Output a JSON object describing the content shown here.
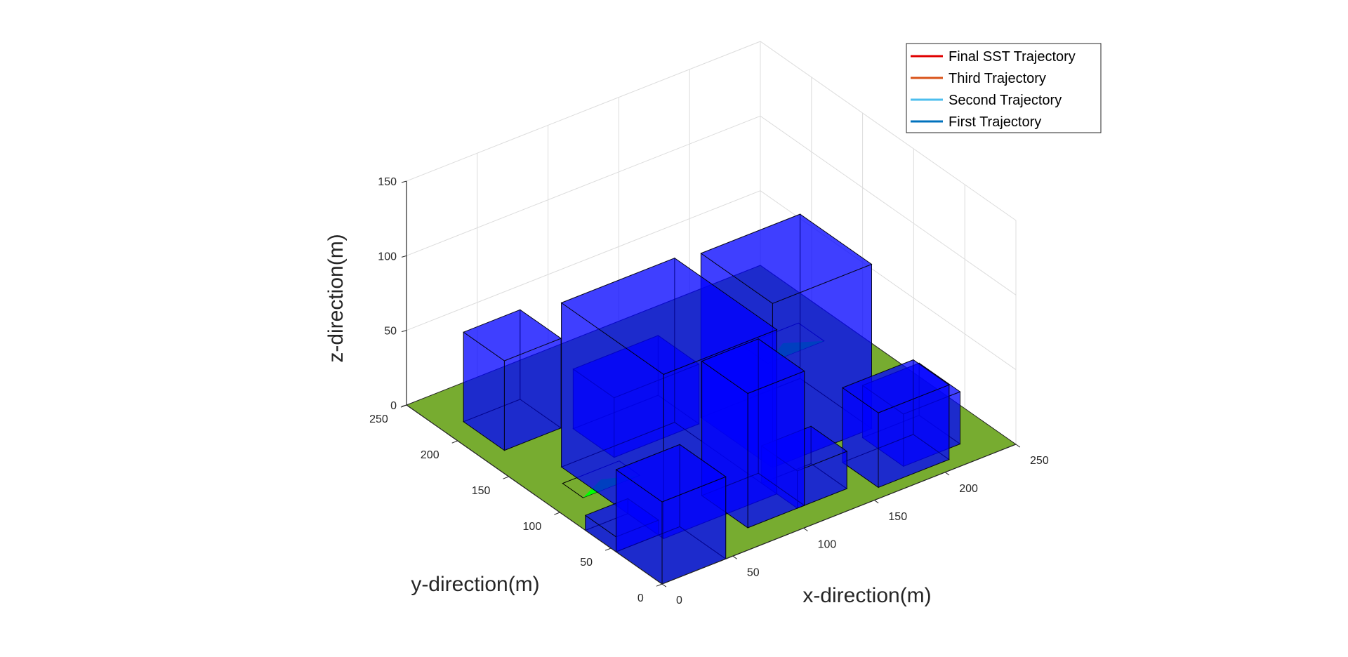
{
  "chart_data": {
    "type": "3d-scene",
    "xlabel": "x-direction(m)",
    "ylabel": "y-direction(m)",
    "zlabel": "z-direction(m)",
    "xlim": [
      0,
      250
    ],
    "ylim": [
      0,
      250
    ],
    "zlim": [
      0,
      150
    ],
    "x_ticks": [
      "0",
      "50",
      "100",
      "150",
      "200",
      "250"
    ],
    "y_ticks": [
      "0",
      "50",
      "100",
      "150",
      "200",
      "250"
    ],
    "z_ticks": [
      "0",
      "50",
      "100",
      "150"
    ],
    "grid": true,
    "legend_position": "top-right",
    "legend": [
      {
        "label": "Final SST Trajectory",
        "color": "#e00000"
      },
      {
        "label": "Third Trajectory",
        "color": "#d95319"
      },
      {
        "label": "Second Trajectory",
        "color": "#4dbeee"
      },
      {
        "label": "First Trajectory",
        "color": "#0072bd"
      }
    ],
    "ground": {
      "x": [
        0,
        250
      ],
      "y": [
        0,
        250
      ],
      "color": "#77ac30"
    },
    "landing_zones": [
      {
        "x": [
          20,
          60
        ],
        "y": [
          105,
          125
        ],
        "color": "#00ff00"
      },
      {
        "x": [
          190,
          230
        ],
        "y": [
          160,
          185
        ],
        "color": "#00ff00"
      }
    ],
    "buildings": [
      {
        "x": [
          0,
          45
        ],
        "y": [
          0,
          45
        ],
        "height": 55,
        "color": "#0000ff"
      },
      {
        "x": [
          0,
          30
        ],
        "y": [
          45,
          75
        ],
        "height": 10,
        "color": "#0000ff"
      },
      {
        "x": [
          75,
          115
        ],
        "y": [
          20,
          65
        ],
        "height": 90,
        "color": "#0000ff"
      },
      {
        "x": [
          110,
          145
        ],
        "y": [
          20,
          55
        ],
        "height": 25,
        "color": "#0000ff"
      },
      {
        "x": [
          185,
          225
        ],
        "y": [
          20,
          60
        ],
        "height": 35,
        "color": "#0000ff"
      },
      {
        "x": [
          30,
          110
        ],
        "y": [
          40,
          140
        ],
        "height": 110,
        "color": "#0000ff"
      },
      {
        "x": [
          125,
          195
        ],
        "y": [
          65,
          135
        ],
        "height": 110,
        "color": "#0000ff"
      },
      {
        "x": [
          60,
          120
        ],
        "y": [
          130,
          170
        ],
        "height": 40,
        "color": "#0000ff"
      },
      {
        "x": [
          15,
          55
        ],
        "y": [
          175,
          215
        ],
        "height": 60,
        "color": "#0000ff"
      },
      {
        "x": [
          160,
          210
        ],
        "y": [
          10,
          45
        ],
        "height": 50,
        "color": "#0000ff"
      }
    ]
  }
}
